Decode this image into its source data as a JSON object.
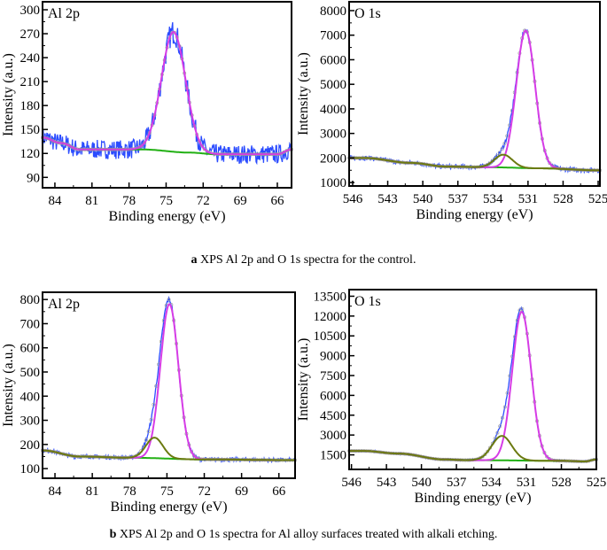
{
  "captions": {
    "a_letter": "a",
    "a_text": "XPS Al 2p and O 1s spectra for the control.",
    "b_letter": "b",
    "b_text": "XPS Al 2p and O 1s spectra for Al alloy surfaces treated with alkali etching."
  },
  "colors": {
    "raw": "#2b4cff",
    "envelope": "#a0a0a0",
    "component_main": "#d63ce6",
    "component_second": "#6b7a10",
    "background": "#22b014"
  },
  "chart_data": [
    {
      "type": "line",
      "label": "Al 2p",
      "xlabel": "Binding energy (eV)",
      "ylabel": "Intensity (a.u.)",
      "xlim": [
        85.0,
        64.85
      ],
      "ylim": [
        77,
        310
      ],
      "xticks": [
        84,
        81,
        78,
        75,
        72,
        69,
        66
      ],
      "yticks": [
        90,
        120,
        150,
        180,
        210,
        240,
        270,
        300
      ],
      "peaks": [
        {
          "center": 74.4,
          "height": 150,
          "fwhm": 2.3
        }
      ],
      "background": [
        [
          85,
          140
        ],
        [
          83.5,
          133
        ],
        [
          82,
          125
        ],
        [
          77,
          125
        ],
        [
          73,
          121
        ],
        [
          71,
          119
        ],
        [
          66,
          119
        ],
        [
          64.85,
          125
        ]
      ],
      "noise": 12
    },
    {
      "type": "line",
      "label": "O 1s",
      "xlabel": "Binding energy (eV)",
      "ylabel": "Intensity (a.u.)",
      "xlim": [
        546.3,
        524.85
      ],
      "ylim": [
        860,
        8360
      ],
      "xticks": [
        546,
        543,
        540,
        537,
        534,
        531,
        528,
        525
      ],
      "yticks": [
        1000,
        2000,
        3000,
        4000,
        5000,
        6000,
        7000,
        8000
      ],
      "peaks": [
        {
          "center": 531.2,
          "height": 5600,
          "fwhm": 1.9
        },
        {
          "center": 533.1,
          "height": 520,
          "fwhm": 1.8
        }
      ],
      "background": [
        [
          545,
          2000
        ],
        [
          541,
          1800
        ],
        [
          538,
          1650
        ],
        [
          534,
          1620
        ],
        [
          530,
          1580
        ],
        [
          525,
          1500
        ]
      ],
      "noise": 90
    },
    {
      "type": "line",
      "label": "Al 2p",
      "xlabel": "Binding energy (eV)",
      "ylabel": "Intensity (a.u.)",
      "xlim": [
        85.0,
        64.7
      ],
      "ylim": [
        60,
        830
      ],
      "xticks": [
        84,
        81,
        78,
        75,
        72,
        69,
        66
      ],
      "yticks": [
        100,
        200,
        300,
        400,
        500,
        600,
        700,
        800
      ],
      "peaks": [
        {
          "center": 74.8,
          "height": 640,
          "fwhm": 1.7
        },
        {
          "center": 76.0,
          "height": 85,
          "fwhm": 1.6
        }
      ],
      "background": [
        [
          85,
          175
        ],
        [
          82,
          150
        ],
        [
          78,
          145
        ],
        [
          72,
          138
        ],
        [
          64.7,
          135
        ]
      ],
      "noise": 8
    },
    {
      "type": "line",
      "label": "O 1s",
      "xlabel": "Binding energy (eV)",
      "ylabel": "Intensity (a.u.)",
      "xlim": [
        546.2,
        525.0
      ],
      "ylim": [
        400,
        14000
      ],
      "xticks": [
        546,
        543,
        540,
        537,
        534,
        531,
        528,
        525
      ],
      "yticks": [
        1500,
        3000,
        4500,
        6000,
        7500,
        9000,
        10500,
        12000,
        13500
      ],
      "peaks": [
        {
          "center": 531.4,
          "height": 11250,
          "fwhm": 1.9
        },
        {
          "center": 533.1,
          "height": 1850,
          "fwhm": 2.0
        }
      ],
      "background": [
        [
          545,
          1800
        ],
        [
          542,
          1600
        ],
        [
          538,
          1150
        ],
        [
          536,
          1100
        ],
        [
          528,
          1050
        ],
        [
          526,
          1000
        ],
        [
          525,
          1150
        ]
      ],
      "noise": 70
    }
  ]
}
